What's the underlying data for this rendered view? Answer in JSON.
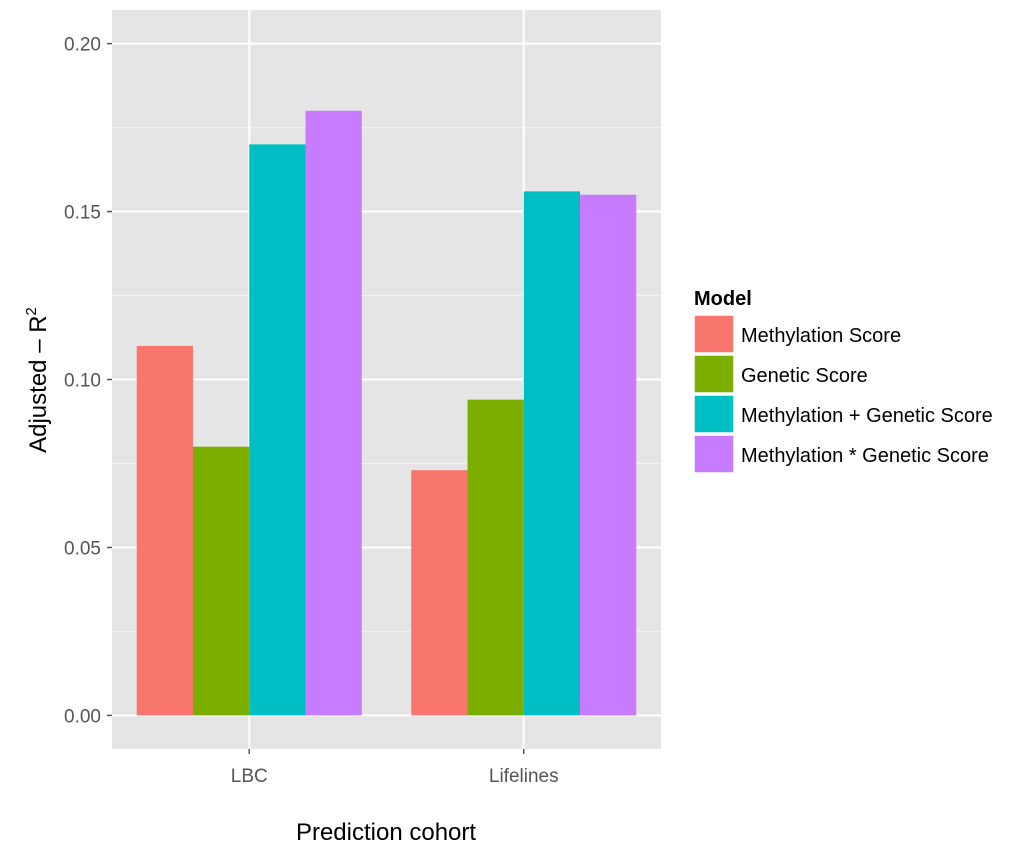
{
  "chart_data": {
    "type": "bar",
    "categories": [
      "LBC",
      "Lifelines"
    ],
    "series": [
      {
        "name": "Methylation Score",
        "values": [
          0.11,
          0.073
        ]
      },
      {
        "name": "Genetic Score",
        "values": [
          0.08,
          0.094
        ]
      },
      {
        "name": "Methylation + Genetic Score",
        "values": [
          0.17,
          0.156
        ]
      },
      {
        "name": "Methylation * Genetic Score",
        "values": [
          0.18,
          0.155
        ]
      }
    ],
    "colors": [
      "#F8766D",
      "#7CAE00",
      "#00BFC4",
      "#C77CFF"
    ],
    "xlabel": "Prediction cohort",
    "ylabel_main": "Adjusted – R",
    "ylabel_sup": "2",
    "ylim": [
      -0.01,
      0.21
    ],
    "yticks": [
      0.0,
      0.05,
      0.1,
      0.15,
      0.2
    ],
    "ytick_labels": [
      "0.00",
      "0.05",
      "0.10",
      "0.15",
      "0.20"
    ],
    "legend_title": "Model",
    "legend_position": "right",
    "grid": true,
    "background": "#E5E5E5"
  }
}
